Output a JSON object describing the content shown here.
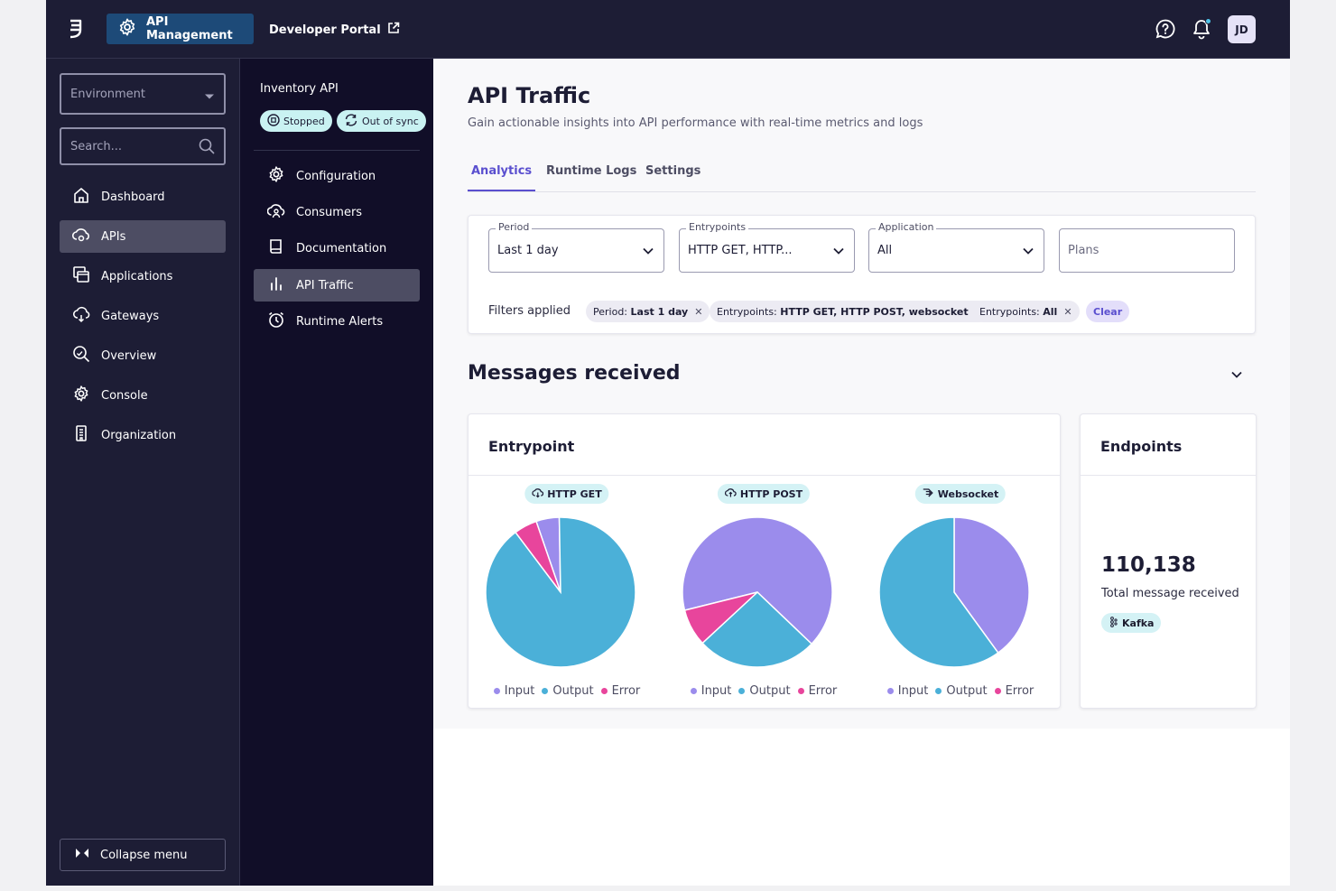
{
  "topbar": {
    "product": "API Management",
    "portal": "Developer Portal",
    "avatar_initials": "JD"
  },
  "sidebar": {
    "environment_placeholder": "Environment",
    "search_placeholder": "Search...",
    "items": [
      {
        "label": "Dashboard",
        "icon": "home-icon"
      },
      {
        "label": "APIs",
        "icon": "apis-icon",
        "active": true
      },
      {
        "label": "Applications",
        "icon": "applications-icon"
      },
      {
        "label": "Gateways",
        "icon": "gateways-icon"
      },
      {
        "label": "Overview",
        "icon": "overview-icon"
      },
      {
        "label": "Console",
        "icon": "console-icon"
      },
      {
        "label": "Organization",
        "icon": "organization-icon"
      }
    ],
    "collapse_label": "Collapse menu"
  },
  "subnav": {
    "api_name": "Inventory API",
    "status_stopped": "Stopped",
    "status_sync": "Out of sync",
    "items": [
      {
        "label": "Configuration",
        "icon": "gear-icon"
      },
      {
        "label": "Consumers",
        "icon": "consumers-icon"
      },
      {
        "label": "Documentation",
        "icon": "book-icon"
      },
      {
        "label": "API Traffic",
        "icon": "bar-chart-icon",
        "active": true
      },
      {
        "label": "Runtime Alerts",
        "icon": "alarm-icon"
      }
    ]
  },
  "page": {
    "title": "API Traffic",
    "subtitle": "Gain actionable insights into API performance with real-time metrics and logs",
    "tabs": [
      "Analytics",
      "Runtime Logs",
      "Settings"
    ]
  },
  "filters": {
    "period": {
      "label": "Period",
      "value": "Last 1 day"
    },
    "entrypoints": {
      "label": "Entrypoints",
      "value": "HTTP GET, HTTP..."
    },
    "application": {
      "label": "Application",
      "value": "All"
    },
    "plans": {
      "placeholder": "Plans"
    },
    "applied_label": "Filters applied",
    "chips": [
      {
        "key": "Period:",
        "value": "Last 1 day"
      },
      {
        "key": "Entrypoints:",
        "value": "HTTP GET, HTTP POST, websocket"
      },
      {
        "key": "Entrypoints:",
        "value": "All"
      }
    ],
    "clear_label": "Clear"
  },
  "section": {
    "title": "Messages received"
  },
  "entrypoint_card": {
    "title": "Entrypoint",
    "legend": [
      "Input",
      "Output",
      "Error"
    ]
  },
  "endpoints_card": {
    "title": "Endpoints",
    "total": "110,138",
    "total_label": "Total message received",
    "connector": "Kafka"
  },
  "colors": {
    "input": "#9b8cec",
    "output": "#4bb0d8",
    "error": "#e8459c",
    "accent": "#5a4fcf"
  },
  "chart_data": [
    {
      "type": "pie",
      "title": "HTTP GET",
      "categories": [
        "Input",
        "Output",
        "Error"
      ],
      "values": [
        5,
        90,
        5
      ]
    },
    {
      "type": "pie",
      "title": "HTTP POST",
      "categories": [
        "Input",
        "Output",
        "Error"
      ],
      "values": [
        66,
        26,
        8
      ]
    },
    {
      "type": "pie",
      "title": "Websocket",
      "categories": [
        "Input",
        "Output",
        "Error"
      ],
      "values": [
        40,
        60,
        0
      ]
    }
  ]
}
